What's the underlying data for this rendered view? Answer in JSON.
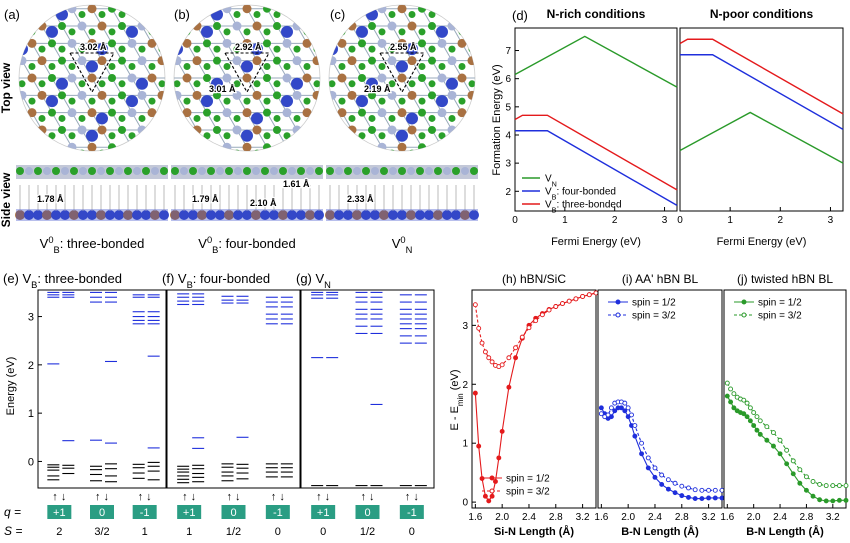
{
  "figure": {
    "top_row": {
      "panel_labels": [
        "(a)",
        "(b)",
        "(c)",
        "(d)"
      ],
      "row_labels": {
        "top": "Top view",
        "side": "Side view"
      },
      "structures": [
        {
          "caption": "V",
          "caption_sup": "0",
          "caption_sub": "B",
          "caption_rest": ": three-bonded",
          "top_dists": [
            "3.02 Å"
          ],
          "side_dists": [
            "1.78 Å"
          ]
        },
        {
          "caption": "V",
          "caption_sup": "0",
          "caption_sub": "B",
          "caption_rest": ": four-bonded",
          "top_dists": [
            "2.92 Å",
            "3.01 Å"
          ],
          "side_dists": [
            "1.79 Å",
            "2.10 Å",
            "1.61 Å"
          ]
        },
        {
          "caption": "V",
          "caption_sup": "0",
          "caption_sub": "N",
          "caption_rest": "",
          "top_dists": [
            "2.55 Å",
            "2.19 Å"
          ],
          "side_dists": [
            "2.33 Å"
          ]
        }
      ]
    },
    "colors": {
      "N": "#3348c8",
      "B": "#2aa02a",
      "Si": "#a97142",
      "hBN_N": "#a9b4d6",
      "red": "#e41a1c",
      "green": "#2a9a2a",
      "blue": "#1f2fdc",
      "teal": "#2a9d83"
    }
  },
  "chart_data": [
    {
      "type": "line",
      "id": "d",
      "title": "N-rich conditions",
      "xlabel": "Fermi Energy (eV)",
      "ylabel": "Formation Energy (eV)",
      "xlim": [
        0,
        3.25
      ],
      "ylim": [
        1.3,
        7.8
      ],
      "xticks": [
        0,
        1,
        2,
        3
      ],
      "yticks": [
        2,
        3,
        4,
        5,
        6,
        7
      ],
      "series": [
        {
          "name": "V_N",
          "x": [
            0,
            1.4,
            3.25
          ],
          "y": [
            6.15,
            7.5,
            5.7
          ]
        },
        {
          "name": "V_B: four-bonded",
          "x": [
            0,
            0.65,
            3.25
          ],
          "y": [
            4.15,
            4.15,
            1.5
          ]
        },
        {
          "name": "V_B: three-bonded",
          "x": [
            0,
            0.15,
            0.65,
            3.25
          ],
          "y": [
            4.55,
            4.7,
            4.7,
            2.05
          ]
        }
      ]
    },
    {
      "type": "line",
      "id": "d2",
      "title": "N-poor conditions",
      "xlabel": "Fermi Energy (eV)",
      "xlim": [
        0,
        3.25
      ],
      "ylim": [
        1.3,
        7.8
      ],
      "xticks": [
        0,
        1,
        2,
        3
      ],
      "series": [
        {
          "name": "V_N",
          "x": [
            0,
            1.4,
            3.25
          ],
          "y": [
            3.45,
            4.8,
            3.0
          ]
        },
        {
          "name": "V_B: four-bonded",
          "x": [
            0,
            0.65,
            3.25
          ],
          "y": [
            6.85,
            6.85,
            4.2
          ]
        },
        {
          "name": "V_B: three-bonded",
          "x": [
            0,
            0.15,
            0.65,
            3.25
          ],
          "y": [
            7.25,
            7.4,
            7.4,
            4.75
          ]
        }
      ],
      "legend": [
        {
          "label": "V",
          "sub": "N"
        },
        {
          "label": "V",
          "sub": "B",
          "rest": ": four-bonded"
        },
        {
          "label": "V",
          "sub": "B",
          "rest": ": three-bonded"
        }
      ]
    },
    {
      "type": "levels",
      "id": "efg",
      "ylabel": "Energy (eV)",
      "ylim": [
        -0.55,
        3.55
      ],
      "yticks": [
        0,
        1,
        2,
        3
      ],
      "spin_label": "↑  ↓",
      "q_label": "q =",
      "S_label": "S =",
      "panels": [
        {
          "title_pre": "(e) V",
          "title_sub": "B",
          "title_post": ": three-bonded",
          "columns": [
            {
              "q": "+1",
              "S": "2",
              "up_occ": [
                -0.07,
                -0.12,
                -0.18,
                -0.3,
                -0.38
              ],
              "dn_occ": [
                -0.08,
                -0.14,
                -0.25
              ],
              "up_emp": [
                3.4,
                3.45,
                3.5
              ],
              "dn_emp": [
                0.43,
                3.4,
                3.45,
                3.5
              ],
              "up_mid": [
                2.02
              ]
            },
            {
              "q": "0",
              "S": "3/2",
              "up_occ": [
                -0.1,
                -0.17,
                -0.27,
                -0.4
              ],
              "dn_occ": [
                -0.05,
                -0.15,
                -0.3,
                -0.42
              ],
              "up_emp": [
                3.3,
                3.4,
                3.5
              ],
              "dn_emp": [
                0.38,
                2.07,
                3.3,
                3.4,
                3.5
              ],
              "up_mid": [
                0.44
              ]
            },
            {
              "q": "-1",
              "S": "1",
              "up_occ": [
                -0.06,
                -0.13,
                -0.24,
                -0.35
              ],
              "dn_occ": [
                -0.02,
                -0.1,
                -0.2,
                -0.38
              ],
              "up_emp": [
                2.85,
                2.92,
                3.0,
                3.1,
                3.4,
                3.45
              ],
              "dn_emp": [
                0.28,
                2.18,
                2.85,
                2.92,
                3.0,
                3.1,
                3.4,
                3.45
              ],
              "up_mid": []
            }
          ]
        },
        {
          "title_pre": "(f) V",
          "title_sub": "B",
          "title_post": ": four-bonded",
          "columns": [
            {
              "q": "+1",
              "S": "1",
              "up_occ": [
                -0.1,
                -0.16,
                -0.22,
                -0.3,
                -0.37,
                -0.44
              ],
              "dn_occ": [
                -0.08,
                -0.15,
                -0.25,
                -0.33,
                -0.42
              ],
              "up_emp": [
                3.25,
                3.32,
                3.4,
                3.47
              ],
              "dn_emp": [
                0.27,
                0.49,
                3.25,
                3.32,
                3.4,
                3.47
              ],
              "up_mid": []
            },
            {
              "q": "0",
              "S": "1/2",
              "up_occ": [
                -0.05,
                -0.12,
                -0.22,
                -0.3,
                -0.4
              ],
              "dn_occ": [
                -0.06,
                -0.14,
                -0.24,
                -0.36
              ],
              "up_emp": [
                3.28,
                3.34,
                3.42
              ],
              "dn_emp": [
                0.5,
                3.28,
                3.34,
                3.42
              ],
              "up_mid": []
            },
            {
              "q": "-1",
              "S": "0",
              "up_occ": [
                -0.05,
                -0.13,
                -0.22,
                -0.32
              ],
              "dn_occ": [
                -0.05,
                -0.13,
                -0.22,
                -0.32
              ],
              "up_emp": [
                2.85,
                2.95,
                3.05,
                3.2,
                3.3,
                3.4
              ],
              "dn_emp": [
                2.85,
                2.95,
                3.05,
                3.2,
                3.3,
                3.4
              ],
              "up_mid": []
            }
          ]
        },
        {
          "title_pre": "(g) V",
          "title_sub": "N",
          "title_post": "",
          "columns": [
            {
              "q": "+1",
              "S": "0",
              "up_occ": [
                -0.5
              ],
              "dn_occ": [
                -0.5
              ],
              "up_emp": [
                2.15,
                3.38,
                3.45,
                3.5
              ],
              "dn_emp": [
                2.15,
                3.38,
                3.45,
                3.5
              ],
              "up_mid": []
            },
            {
              "q": "0",
              "S": "1/2",
              "up_occ": [
                -0.5
              ],
              "dn_occ": [
                -0.5
              ],
              "up_emp": [
                2.65,
                2.8,
                2.95,
                3.05,
                3.15,
                3.3,
                3.4,
                3.5
              ],
              "dn_emp": [
                1.18,
                2.65,
                2.8,
                2.95,
                3.05,
                3.15,
                3.3,
                3.4,
                3.5
              ],
              "up_mid": []
            },
            {
              "q": "-1",
              "S": "0",
              "up_occ": [
                -0.5
              ],
              "dn_occ": [
                -0.5
              ],
              "up_emp": [
                2.45,
                2.6,
                2.75,
                2.85,
                2.95,
                3.05,
                3.15,
                3.3,
                3.45
              ],
              "dn_emp": [
                2.45,
                2.6,
                2.75,
                2.85,
                2.95,
                3.05,
                3.15,
                3.3,
                3.45
              ],
              "up_mid": []
            }
          ]
        }
      ]
    },
    {
      "type": "line",
      "id": "h",
      "title": "(h) hBN/SiC",
      "xlabel": "Si-N Length (Å)",
      "ylabel_pre": "E - E",
      "ylabel_sub": "min",
      "ylabel_post": " (eV)",
      "xlim": [
        1.55,
        3.4
      ],
      "ylim": [
        -0.1,
        3.6
      ],
      "xticks": [
        1.6,
        2.0,
        2.4,
        2.8,
        3.2
      ],
      "xticklabels": [
        "1.6",
        "2.0",
        "2.4",
        "2.8",
        "3.2"
      ],
      "yticks": [
        0,
        1,
        2,
        3
      ],
      "series": [
        {
          "name": "spin = 1/2",
          "style": "solid",
          "x": [
            1.6,
            1.65,
            1.7,
            1.75,
            1.8,
            1.85,
            1.9,
            1.95,
            2.0,
            2.1,
            2.2,
            2.3,
            2.4,
            2.5,
            2.6,
            2.7,
            2.8,
            2.9,
            3.0,
            3.1,
            3.2,
            3.3,
            3.4
          ],
          "y": [
            1.85,
            0.95,
            0.4,
            0.1,
            0.02,
            0.1,
            0.35,
            0.75,
            1.2,
            1.95,
            2.45,
            2.78,
            3.0,
            3.12,
            3.2,
            3.27,
            3.32,
            3.37,
            3.41,
            3.45,
            3.49,
            3.52,
            3.55
          ]
        },
        {
          "name": "spin = 3/2",
          "style": "dashed",
          "x": [
            1.6,
            1.65,
            1.7,
            1.75,
            1.8,
            1.85,
            1.9,
            1.95,
            2.0,
            2.1,
            2.2,
            2.3,
            2.4,
            2.5,
            2.6,
            2.7,
            2.8,
            2.9,
            3.0,
            3.1,
            3.2,
            3.3,
            3.4
          ],
          "y": [
            3.35,
            2.95,
            2.7,
            2.55,
            2.45,
            2.38,
            2.32,
            2.3,
            2.33,
            2.45,
            2.62,
            2.8,
            2.96,
            3.08,
            3.18,
            3.26,
            3.32,
            3.37,
            3.41,
            3.45,
            3.49,
            3.52,
            3.55
          ]
        }
      ]
    },
    {
      "type": "line",
      "id": "i",
      "title": "(i) AA' hBN BL",
      "xlabel": "B-N Length (Å)",
      "xlim": [
        1.55,
        3.4
      ],
      "ylim": [
        -0.1,
        3.6
      ],
      "xticks": [
        1.6,
        2.0,
        2.4,
        2.8,
        3.2
      ],
      "xticklabels": [
        "1.6",
        "2.0",
        "2.4",
        "2.8",
        "3.2"
      ],
      "series": [
        {
          "name": "spin = 1/2",
          "style": "solid",
          "x": [
            1.6,
            1.65,
            1.7,
            1.75,
            1.8,
            1.85,
            1.9,
            1.95,
            2.0,
            2.05,
            2.1,
            2.2,
            2.3,
            2.4,
            2.5,
            2.6,
            2.7,
            2.8,
            2.9,
            3.0,
            3.1,
            3.2,
            3.3,
            3.4
          ],
          "y": [
            1.6,
            1.5,
            1.42,
            1.45,
            1.55,
            1.6,
            1.6,
            1.55,
            1.45,
            1.3,
            1.12,
            0.82,
            0.58,
            0.42,
            0.3,
            0.22,
            0.16,
            0.11,
            0.08,
            0.06,
            0.06,
            0.07,
            0.07,
            0.07
          ]
        },
        {
          "name": "spin = 3/2",
          "style": "dashed",
          "x": [
            1.6,
            1.65,
            1.7,
            1.75,
            1.8,
            1.85,
            1.9,
            1.95,
            2.0,
            2.05,
            2.1,
            2.2,
            2.3,
            2.4,
            2.5,
            2.6,
            2.7,
            2.8,
            2.9,
            3.0,
            3.1,
            3.2,
            3.3,
            3.4
          ],
          "y": [
            1.5,
            1.45,
            1.48,
            1.6,
            1.68,
            1.7,
            1.7,
            1.68,
            1.6,
            1.48,
            1.3,
            1.0,
            0.75,
            0.58,
            0.46,
            0.38,
            0.32,
            0.27,
            0.24,
            0.21,
            0.2,
            0.2,
            0.2,
            0.2
          ]
        }
      ]
    },
    {
      "type": "line",
      "id": "j",
      "title": "(j) twisted hBN BL",
      "xlabel": "B-N Length (Å)",
      "xlim": [
        1.55,
        3.4
      ],
      "ylim": [
        -0.1,
        3.6
      ],
      "xticks": [
        1.6,
        2.0,
        2.4,
        2.8,
        3.2
      ],
      "xticklabels": [
        "1.6",
        "2.0",
        "2.4",
        "2.8",
        "3.2"
      ],
      "series": [
        {
          "name": "spin = 1/2",
          "style": "solid",
          "x": [
            1.6,
            1.65,
            1.7,
            1.75,
            1.8,
            1.85,
            1.9,
            1.95,
            2.0,
            2.05,
            2.1,
            2.2,
            2.3,
            2.4,
            2.5,
            2.6,
            2.7,
            2.8,
            2.9,
            3.0,
            3.1,
            3.2,
            3.3,
            3.4
          ],
          "y": [
            1.8,
            1.7,
            1.6,
            1.55,
            1.52,
            1.5,
            1.45,
            1.38,
            1.3,
            1.22,
            1.15,
            1.05,
            0.95,
            0.82,
            0.65,
            0.48,
            0.32,
            0.2,
            0.1,
            0.04,
            0.02,
            0.02,
            0.03,
            0.03
          ]
        },
        {
          "name": "spin = 3/2",
          "style": "dashed",
          "x": [
            1.6,
            1.65,
            1.7,
            1.75,
            1.8,
            1.85,
            1.9,
            1.95,
            2.0,
            2.05,
            2.1,
            2.2,
            2.3,
            2.4,
            2.5,
            2.6,
            2.7,
            2.8,
            2.9,
            3.0,
            3.1,
            3.2,
            3.3,
            3.4
          ],
          "y": [
            2.02,
            1.92,
            1.84,
            1.78,
            1.75,
            1.73,
            1.68,
            1.6,
            1.52,
            1.45,
            1.38,
            1.28,
            1.18,
            1.05,
            0.88,
            0.7,
            0.55,
            0.43,
            0.35,
            0.3,
            0.28,
            0.28,
            0.28,
            0.28
          ]
        }
      ]
    }
  ]
}
